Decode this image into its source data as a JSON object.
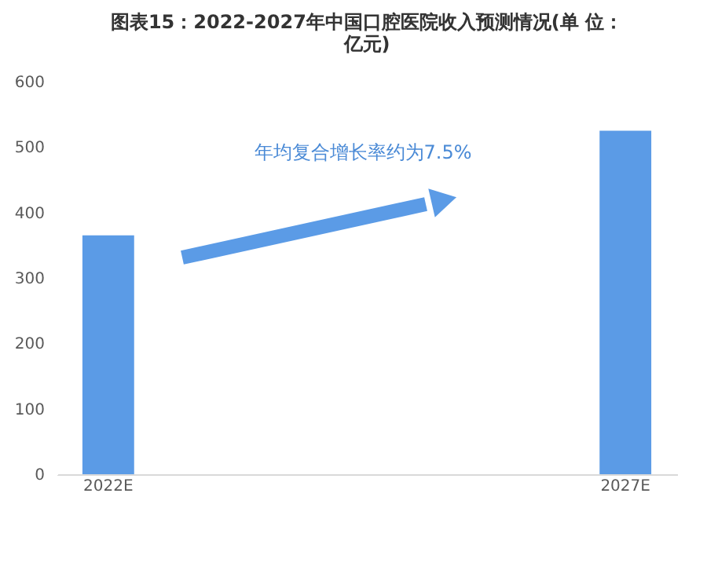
{
  "chart_data": {
    "type": "bar",
    "title": "图表15：2022-2027年中国口腔医院收入预测情况(单 位：亿元)",
    "categories": [
      "2022E",
      "2027E"
    ],
    "values": [
      365,
      525
    ],
    "color": "#5b9be6",
    "ylim": [
      0,
      600
    ],
    "yticks": [
      0,
      100,
      200,
      300,
      400,
      500,
      600
    ],
    "grid": false,
    "annotations": [
      "年均复合增长率约为7.5%"
    ]
  }
}
